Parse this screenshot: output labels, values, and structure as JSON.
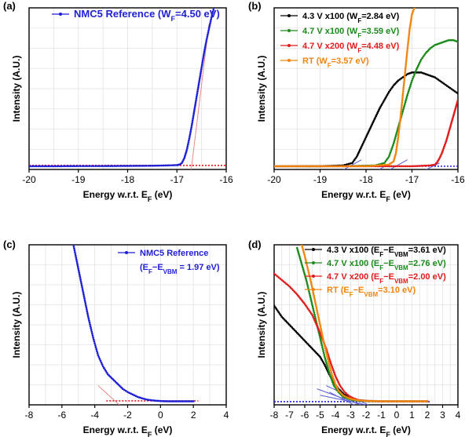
{
  "chart_data": [
    {
      "panel_label": "(a)",
      "type": "scatter",
      "xlabel_main": "Energy w.r.t. E",
      "xlabel_sub": "F",
      "xlabel_tail": " (eV)",
      "ylabel": "Intensity (A.U.)",
      "xlim": [
        -20,
        -16
      ],
      "ylim": [
        0,
        1
      ],
      "xticks": [
        -20,
        -19,
        -18,
        -17,
        -16
      ],
      "ytick_labels": false,
      "grid": true,
      "legend": [
        {
          "parts": [
            [
              "NMC5 Reference (W",
              ""
            ],
            [
              "F",
              "sub"
            ],
            [
              "=4.50 eV)",
              ""
            ]
          ],
          "color": "#1f1fd6"
        }
      ],
      "series": [
        {
          "color": "#1f1fd6",
          "x": [
            -20.0,
            -19.5,
            -19.0,
            -18.5,
            -18.0,
            -17.5,
            -17.2,
            -17.0,
            -16.95,
            -16.9,
            -16.85,
            -16.8,
            -16.75,
            -16.7,
            -16.65,
            -16.6,
            -16.55,
            -16.5,
            -16.45,
            -16.4,
            -16.35,
            -16.3,
            -16.25
          ],
          "y": [
            0.02,
            0.02,
            0.021,
            0.021,
            0.022,
            0.023,
            0.025,
            0.027,
            0.03,
            0.04,
            0.07,
            0.12,
            0.19,
            0.27,
            0.36,
            0.45,
            0.54,
            0.63,
            0.72,
            0.8,
            0.87,
            0.94,
            1.0
          ]
        }
      ],
      "fit_lines": [
        {
          "x": [
            -20.0,
            -16.0
          ],
          "y": [
            0.025,
            0.025
          ],
          "color": "#e01b1b",
          "dash": true
        },
        {
          "x": [
            -16.75,
            -16.35
          ],
          "y": [
            -0.1,
            0.9
          ],
          "color": "#e88a8a",
          "dash": false
        }
      ]
    },
    {
      "panel_label": "(b)",
      "type": "scatter",
      "xlabel_main": "Energy w.r.t. E",
      "xlabel_sub": "F",
      "xlabel_tail": " (eV)",
      "ylabel": "Intensity (A.U.)",
      "xlim": [
        -20,
        -16
      ],
      "ylim": [
        0,
        1
      ],
      "xticks": [
        -20,
        -19,
        -18,
        -17,
        -16
      ],
      "ytick_labels": false,
      "grid": true,
      "legend": [
        {
          "parts": [
            [
              "4.3 V x100 (W",
              ""
            ],
            [
              "F",
              "sub"
            ],
            [
              "=2.84 eV)",
              ""
            ]
          ],
          "color": "#000000"
        },
        {
          "parts": [
            [
              "4.7 V x100 (W",
              ""
            ],
            [
              "F",
              "sub"
            ],
            [
              "=3.59 eV)",
              ""
            ]
          ],
          "color": "#1a8a1a"
        },
        {
          "parts": [
            [
              "4.7 V x200 (W",
              ""
            ],
            [
              "F",
              "sub"
            ],
            [
              "=4.48 eV)",
              ""
            ]
          ],
          "color": "#e01b1b"
        },
        {
          "parts": [
            [
              "RT (W",
              ""
            ],
            [
              "F",
              "sub"
            ],
            [
              "=3.57 eV)",
              ""
            ]
          ],
          "color": "#f0860e"
        }
      ],
      "series": [
        {
          "color": "#000000",
          "x": [
            -20.0,
            -19.0,
            -18.5,
            -18.3,
            -18.2,
            -18.1,
            -18.0,
            -17.9,
            -17.8,
            -17.7,
            -17.6,
            -17.5,
            -17.4,
            -17.3,
            -17.2,
            -17.1,
            -17.0,
            -16.9,
            -16.8,
            -16.7,
            -16.6,
            -16.5,
            -16.4,
            -16.3,
            -16.2,
            -16.1,
            -16.0
          ],
          "y": [
            0.02,
            0.02,
            0.025,
            0.04,
            0.08,
            0.14,
            0.2,
            0.26,
            0.32,
            0.38,
            0.43,
            0.48,
            0.52,
            0.55,
            0.57,
            0.59,
            0.6,
            0.6,
            0.6,
            0.59,
            0.58,
            0.57,
            0.55,
            0.53,
            0.51,
            0.49,
            0.47
          ]
        },
        {
          "color": "#1a8a1a",
          "x": [
            -20.0,
            -18.5,
            -17.8,
            -17.6,
            -17.5,
            -17.4,
            -17.3,
            -17.2,
            -17.1,
            -17.0,
            -16.9,
            -16.8,
            -16.7,
            -16.6,
            -16.5,
            -16.4,
            -16.3,
            -16.2,
            -16.1,
            -16.0
          ],
          "y": [
            0.02,
            0.02,
            0.025,
            0.04,
            0.08,
            0.16,
            0.26,
            0.36,
            0.46,
            0.55,
            0.62,
            0.68,
            0.72,
            0.75,
            0.77,
            0.78,
            0.79,
            0.8,
            0.8,
            0.79
          ]
        },
        {
          "color": "#e01b1b",
          "x": [
            -20.0,
            -17.0,
            -16.6,
            -16.5,
            -16.45,
            -16.4,
            -16.35,
            -16.3,
            -16.25,
            -16.2,
            -16.15,
            -16.1,
            -16.05,
            -16.0
          ],
          "y": [
            0.02,
            0.02,
            0.025,
            0.03,
            0.045,
            0.07,
            0.1,
            0.14,
            0.18,
            0.23,
            0.28,
            0.33,
            0.38,
            0.43
          ]
        },
        {
          "color": "#f0860e",
          "x": [
            -20.0,
            -18.0,
            -17.5,
            -17.4,
            -17.35,
            -17.3,
            -17.25,
            -17.2,
            -17.15,
            -17.1,
            -17.05,
            -17.0,
            -16.95
          ],
          "y": [
            0.02,
            0.02,
            0.03,
            0.05,
            0.1,
            0.2,
            0.32,
            0.46,
            0.6,
            0.74,
            0.87,
            0.96,
            1.0
          ]
        }
      ],
      "fit_lines": [
        {
          "x": [
            -20.0,
            -16.0
          ],
          "y": [
            0.02,
            0.02
          ],
          "color": "#1f1fd6",
          "dash": true
        },
        {
          "x": [
            -18.8,
            -18.1
          ],
          "y": [
            -0.05,
            0.06
          ],
          "color": "#5b5bd6",
          "dash": false
        },
        {
          "x": [
            -17.9,
            -17.4
          ],
          "y": [
            -0.03,
            0.05
          ],
          "color": "#5b5bd6",
          "dash": false
        },
        {
          "x": [
            -17.6,
            -17.1
          ],
          "y": [
            -0.02,
            0.06
          ],
          "color": "#5b5bd6",
          "dash": false
        },
        {
          "x": [
            -16.9,
            -16.4
          ],
          "y": [
            -0.03,
            0.04
          ],
          "color": "#5b5bd6",
          "dash": false
        }
      ]
    },
    {
      "panel_label": "(c)",
      "type": "scatter",
      "xlabel_main": "Energy w.r.t. E",
      "xlabel_sub": "F",
      "xlabel_tail": " (eV)",
      "ylabel": "Intensity (A.U.)",
      "xlim": [
        -8,
        4
      ],
      "ylim": [
        0,
        1
      ],
      "xticks": [
        -8,
        -6,
        -4,
        -2,
        0,
        2,
        4
      ],
      "ytick_labels": false,
      "grid": true,
      "legend": [
        {
          "parts": [
            [
              "NMC5 Reference",
              ""
            ]
          ],
          "color": "#1f1fd6"
        },
        {
          "parts": [
            [
              "(E",
              ""
            ],
            [
              "F",
              "sub"
            ],
            [
              "−E",
              ""
            ],
            [
              "VBM",
              "sub"
            ],
            [
              " = 1.97 eV)",
              ""
            ]
          ],
          "color": null
        }
      ],
      "series": [
        {
          "color": "#1f1fd6",
          "x": [
            -5.3,
            -5.0,
            -4.7,
            -4.4,
            -4.1,
            -3.8,
            -3.5,
            -3.2,
            -2.9,
            -2.6,
            -2.3,
            -2.0,
            -1.7,
            -1.4,
            -1.1,
            -0.8,
            -0.5,
            -0.2,
            0.1,
            0.5,
            1.0,
            1.5,
            2.0
          ],
          "y": [
            1.0,
            0.85,
            0.7,
            0.55,
            0.42,
            0.31,
            0.24,
            0.19,
            0.16,
            0.13,
            0.1,
            0.08,
            0.065,
            0.05,
            0.04,
            0.032,
            0.028,
            0.025,
            0.023,
            0.022,
            0.022,
            0.022,
            0.022
          ]
        }
      ],
      "fit_lines": [
        {
          "x": [
            -3.3,
            2.3
          ],
          "y": [
            0.025,
            0.025
          ],
          "color": "#e01b1b",
          "dash": true
        },
        {
          "x": [
            -3.8,
            -2.4
          ],
          "y": [
            0.12,
            -0.01
          ],
          "color": "#e88a8a",
          "dash": false
        }
      ]
    },
    {
      "panel_label": "(d)",
      "type": "scatter",
      "xlabel_main": "Energy w.r.t. E",
      "xlabel_sub": "F",
      "xlabel_tail": " (eV)",
      "ylabel": "Intensity (A.U.)",
      "xlim": [
        -8,
        4
      ],
      "ylim": [
        0,
        1
      ],
      "xticks": [
        -8,
        -7,
        -6,
        -5,
        -4,
        -3,
        -2,
        -1,
        0,
        1,
        2,
        3,
        4
      ],
      "ytick_labels": false,
      "grid": true,
      "legend": [
        {
          "parts": [
            [
              "4.3 V x100 (E",
              ""
            ],
            [
              "F",
              "sub"
            ],
            [
              "−E",
              ""
            ],
            [
              "VBM",
              "sub"
            ],
            [
              "=3.61 eV)",
              ""
            ]
          ],
          "color": "#000000"
        },
        {
          "parts": [
            [
              "4.7 V x100 (E",
              ""
            ],
            [
              "F",
              "sub"
            ],
            [
              "−E",
              ""
            ],
            [
              "VBM",
              "sub"
            ],
            [
              "=2.76 eV)",
              ""
            ]
          ],
          "color": "#1a8a1a"
        },
        {
          "parts": [
            [
              "4.7 V x200 (E",
              ""
            ],
            [
              "F",
              "sub"
            ],
            [
              "−E",
              ""
            ],
            [
              "VBM",
              "sub"
            ],
            [
              "=2.00 eV)",
              ""
            ]
          ],
          "color": "#e01b1b"
        },
        {
          "parts": [
            [
              "RT (E",
              ""
            ],
            [
              "F",
              "sub"
            ],
            [
              "−E",
              ""
            ],
            [
              "VBM",
              "sub"
            ],
            [
              "=3.10 eV)",
              ""
            ]
          ],
          "color": "#f0860e"
        }
      ],
      "series": [
        {
          "color": "#000000",
          "x": [
            -8.0,
            -7.5,
            -7.0,
            -6.5,
            -6.0,
            -5.5,
            -5.0,
            -4.7,
            -4.4,
            -4.1,
            -3.8,
            -3.5,
            -3.2,
            -2.9,
            -2.6,
            -2.0,
            -1.0,
            0.0,
            1.0,
            2.0
          ],
          "y": [
            0.62,
            0.55,
            0.5,
            0.45,
            0.4,
            0.35,
            0.3,
            0.25,
            0.19,
            0.14,
            0.1,
            0.07,
            0.05,
            0.04,
            0.03,
            0.025,
            0.022,
            0.022,
            0.022,
            0.022
          ]
        },
        {
          "color": "#1a8a1a",
          "x": [
            -6.5,
            -6.2,
            -5.9,
            -5.6,
            -5.3,
            -5.0,
            -4.7,
            -4.4,
            -4.1,
            -3.8,
            -3.5,
            -3.2,
            -2.9,
            -2.6,
            -2.0,
            -1.0,
            0.0,
            1.0,
            2.0
          ],
          "y": [
            0.98,
            0.88,
            0.78,
            0.66,
            0.54,
            0.42,
            0.3,
            0.2,
            0.12,
            0.08,
            0.05,
            0.04,
            0.03,
            0.026,
            0.023,
            0.022,
            0.022,
            0.022,
            0.022
          ]
        },
        {
          "color": "#e01b1b",
          "x": [
            -8.0,
            -7.5,
            -7.0,
            -6.5,
            -6.0,
            -5.5,
            -5.0,
            -4.6,
            -4.3,
            -4.0,
            -3.7,
            -3.4,
            -3.1,
            -2.8,
            -2.5,
            -2.0,
            -1.0,
            0.0,
            1.0,
            2.0
          ],
          "y": [
            0.82,
            0.78,
            0.74,
            0.69,
            0.63,
            0.56,
            0.45,
            0.35,
            0.26,
            0.18,
            0.12,
            0.08,
            0.055,
            0.04,
            0.03,
            0.025,
            0.022,
            0.022,
            0.022,
            0.022
          ]
        },
        {
          "color": "#f0860e",
          "x": [
            -6.2,
            -6.0,
            -5.8,
            -5.6,
            -5.4,
            -5.2,
            -5.0,
            -4.8,
            -4.6,
            -4.4,
            -4.2,
            -4.0,
            -3.8,
            -3.5,
            -3.2,
            -2.9,
            -2.5,
            -2.0,
            -1.0,
            0.0,
            1.0,
            2.0
          ],
          "y": [
            1.0,
            0.93,
            0.85,
            0.77,
            0.68,
            0.59,
            0.5,
            0.41,
            0.33,
            0.25,
            0.18,
            0.13,
            0.09,
            0.06,
            0.045,
            0.035,
            0.028,
            0.024,
            0.022,
            0.022,
            0.022,
            0.022
          ]
        }
      ],
      "fit_lines": [
        {
          "x": [
            -8.0,
            2.2
          ],
          "y": [
            0.02,
            0.02
          ],
          "color": "#1f1fd6",
          "dash": true
        },
        {
          "x": [
            -5.2,
            -1.8
          ],
          "y": [
            0.1,
            -0.02
          ],
          "color": "#5b5bd6",
          "dash": false
        },
        {
          "x": [
            -4.6,
            -1.4
          ],
          "y": [
            0.12,
            -0.02
          ],
          "color": "#5b5bd6",
          "dash": false
        },
        {
          "x": [
            -5.0,
            -2.0
          ],
          "y": [
            0.06,
            0.0
          ],
          "color": "#5b5bd6",
          "dash": false
        },
        {
          "x": [
            -4.4,
            -2.6
          ],
          "y": [
            0.08,
            -0.01
          ],
          "color": "#5b5bd6",
          "dash": false
        }
      ]
    }
  ]
}
